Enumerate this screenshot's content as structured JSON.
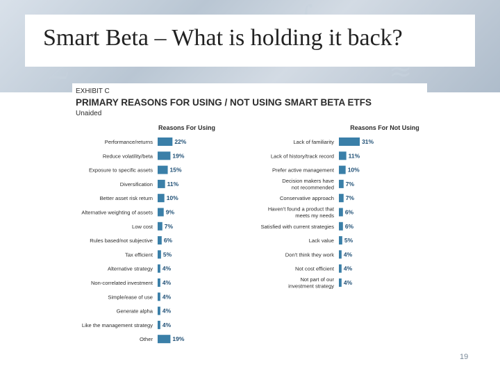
{
  "title": "Smart Beta – What is holding it back?",
  "page_number": "19",
  "colors": {
    "bar": "#3a7fa8",
    "text": "#2b2b2b",
    "value_text": "#1f4f75"
  },
  "chart_data": {
    "type": "bar",
    "exhibit": "EXHIBIT C",
    "heading": "PRIMARY REASONS FOR USING / NOT USING SMART BETA ETFS",
    "subtitle": "Unaided",
    "orientation": "horizontal",
    "panels": [
      {
        "label": "Reasons For Using",
        "categories": [
          "Performance/returns",
          "Reduce volatility/beta",
          "Exposure to specific assets",
          "Diversification",
          "Better asset risk return",
          "Alternative weighting of assets",
          "Low cost",
          "Rules based/not subjective",
          "Tax efficient",
          "Alternative strategy",
          "Non-correlated investment",
          "Simple/ease of use",
          "Generate alpha",
          "Like the management strategy",
          "Other"
        ],
        "values": [
          22,
          19,
          15,
          11,
          10,
          9,
          7,
          6,
          5,
          4,
          4,
          4,
          4,
          4,
          19
        ],
        "labels": [
          "22%",
          "19%",
          "15%",
          "11%",
          "10%",
          "9%",
          "7%",
          "6%",
          "5%",
          "4%",
          "4%",
          "4%",
          "4%",
          "4%",
          "19%"
        ]
      },
      {
        "label": "Reasons For Not Using",
        "categories": [
          [
            "Lack of familiarity"
          ],
          [
            "Lack of history/track record"
          ],
          [
            "Prefer active management"
          ],
          [
            "Decision makers have",
            "not recommended"
          ],
          [
            "Conservative approach"
          ],
          [
            "Haven't found a product that",
            "meets my needs"
          ],
          [
            "Satisfied with current strategies"
          ],
          [
            "Lack value"
          ],
          [
            "Don't think they work"
          ],
          [
            "Not cost efficient"
          ],
          [
            "Not part of our",
            "investment strategy"
          ]
        ],
        "values": [
          31,
          11,
          10,
          7,
          7,
          6,
          6,
          5,
          4,
          4,
          4
        ],
        "labels": [
          "31%",
          "11%",
          "10%",
          "7%",
          "7%",
          "6%",
          "6%",
          "5%",
          "4%",
          "4%",
          "4%"
        ]
      }
    ]
  }
}
